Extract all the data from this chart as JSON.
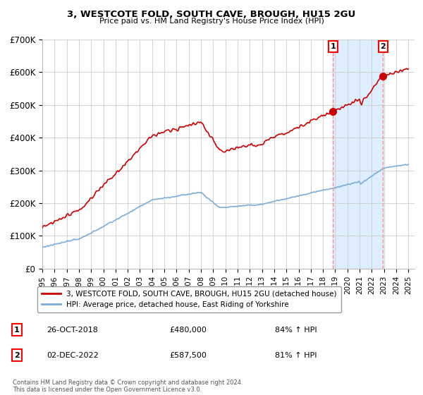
{
  "title": "3, WESTCOTE FOLD, SOUTH CAVE, BROUGH, HU15 2GU",
  "subtitle": "Price paid vs. HM Land Registry's House Price Index (HPI)",
  "ylim": [
    0,
    700000
  ],
  "yticks": [
    0,
    100000,
    200000,
    300000,
    400000,
    500000,
    600000,
    700000
  ],
  "ytick_labels": [
    "£0",
    "£100K",
    "£200K",
    "£300K",
    "£400K",
    "£500K",
    "£600K",
    "£700K"
  ],
  "sale1_date_num": 2018.82,
  "sale1_price": 480000,
  "sale1_label": "1",
  "sale1_date_str": "26-OCT-2018",
  "sale1_hpi_pct": "84% ↑ HPI",
  "sale2_date_num": 2022.92,
  "sale2_price": 587500,
  "sale2_label": "2",
  "sale2_date_str": "02-DEC-2022",
  "sale2_hpi_pct": "81% ↑ HPI",
  "hpi_color": "#7aaddc",
  "price_color": "#cc0000",
  "vline_color": "#ff8888",
  "shade_color": "#ddeeff",
  "background_color": "#ffffff",
  "grid_color": "#cccccc",
  "legend_label_price": "3, WESTCOTE FOLD, SOUTH CAVE, BROUGH, HU15 2GU (detached house)",
  "legend_label_hpi": "HPI: Average price, detached house, East Riding of Yorkshire",
  "footer": "Contains HM Land Registry data © Crown copyright and database right 2024.\nThis data is licensed under the Open Government Licence v3.0.",
  "xlim_start": 1995,
  "xlim_end": 2025.5
}
